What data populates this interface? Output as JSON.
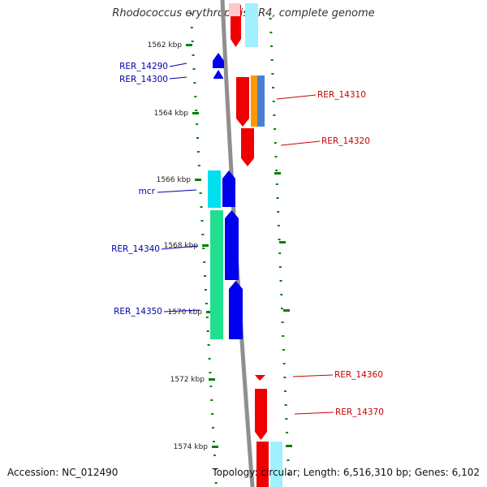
{
  "title": "Rhodococcus erythropolis PR4, complete genome",
  "footer": {
    "accession": "Accession: NC_012490",
    "summary": "Topology: circular; Length: 6,516,310 bp; Genes: 6,102"
  },
  "colors": {
    "forward_red": "#ee0000",
    "forward_pink": "#ffc8c8",
    "forward_cyan": "#a0f0ff",
    "forward_orange": "#ff9800",
    "forward_steel": "#4a7fd0",
    "reverse_blue": "#0000ee",
    "reverse_cyan": "#00e0f0",
    "reverse_green": "#20e090",
    "backbone": "#8f8f8f",
    "tick_green": "#008000",
    "label_red": "#cc0000",
    "label_blue": "#0000aa"
  },
  "scale_labels": [
    "1562 kbp",
    "1564 kbp",
    "1566 kbp",
    "1568 kbp",
    "1570 kbp",
    "1572 kbp",
    "1574 kbp"
  ],
  "genes_left": [
    {
      "label": "RER_14290"
    },
    {
      "label": "RER_14300"
    },
    {
      "label": "mcr"
    },
    {
      "label": "RER_14340"
    },
    {
      "label": "RER_14350"
    }
  ],
  "genes_right": [
    {
      "label": "RER_14310"
    },
    {
      "label": "RER_14320"
    },
    {
      "label": "RER_14360"
    },
    {
      "label": "RER_14370"
    }
  ]
}
